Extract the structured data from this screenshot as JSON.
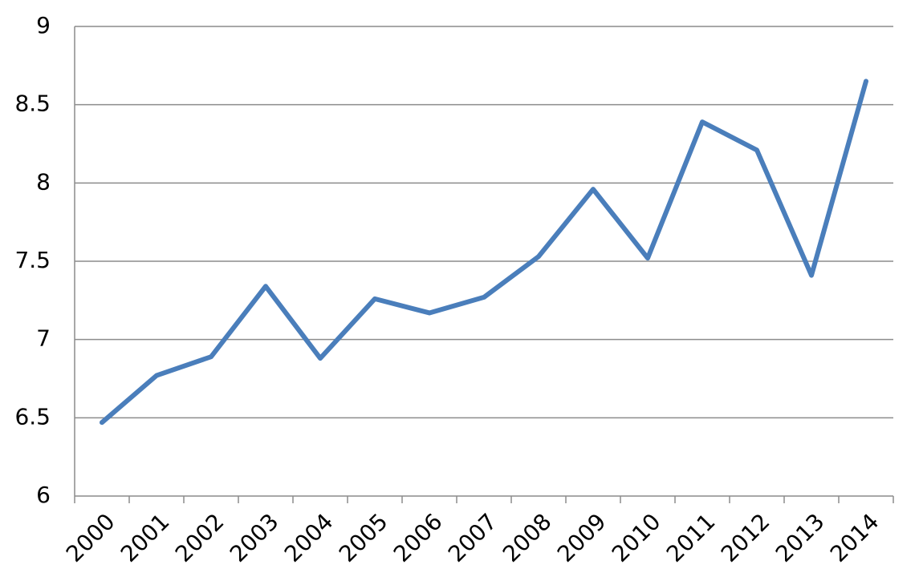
{
  "chart_data": {
    "type": "line",
    "categories": [
      "2000",
      "2001",
      "2002",
      "2003",
      "2004",
      "2005",
      "2006",
      "2007",
      "2008",
      "2009",
      "2010",
      "2011",
      "2012",
      "2013",
      "2014"
    ],
    "values": [
      6.47,
      6.77,
      6.89,
      7.34,
      6.88,
      7.26,
      7.17,
      7.27,
      7.53,
      7.96,
      7.52,
      8.39,
      8.21,
      7.41,
      8.65
    ],
    "color": "#4a7ebb",
    "ylim": [
      6,
      9
    ],
    "yticks": [
      6,
      6.5,
      7,
      7.5,
      8,
      8.5,
      9
    ],
    "grid": true
  }
}
